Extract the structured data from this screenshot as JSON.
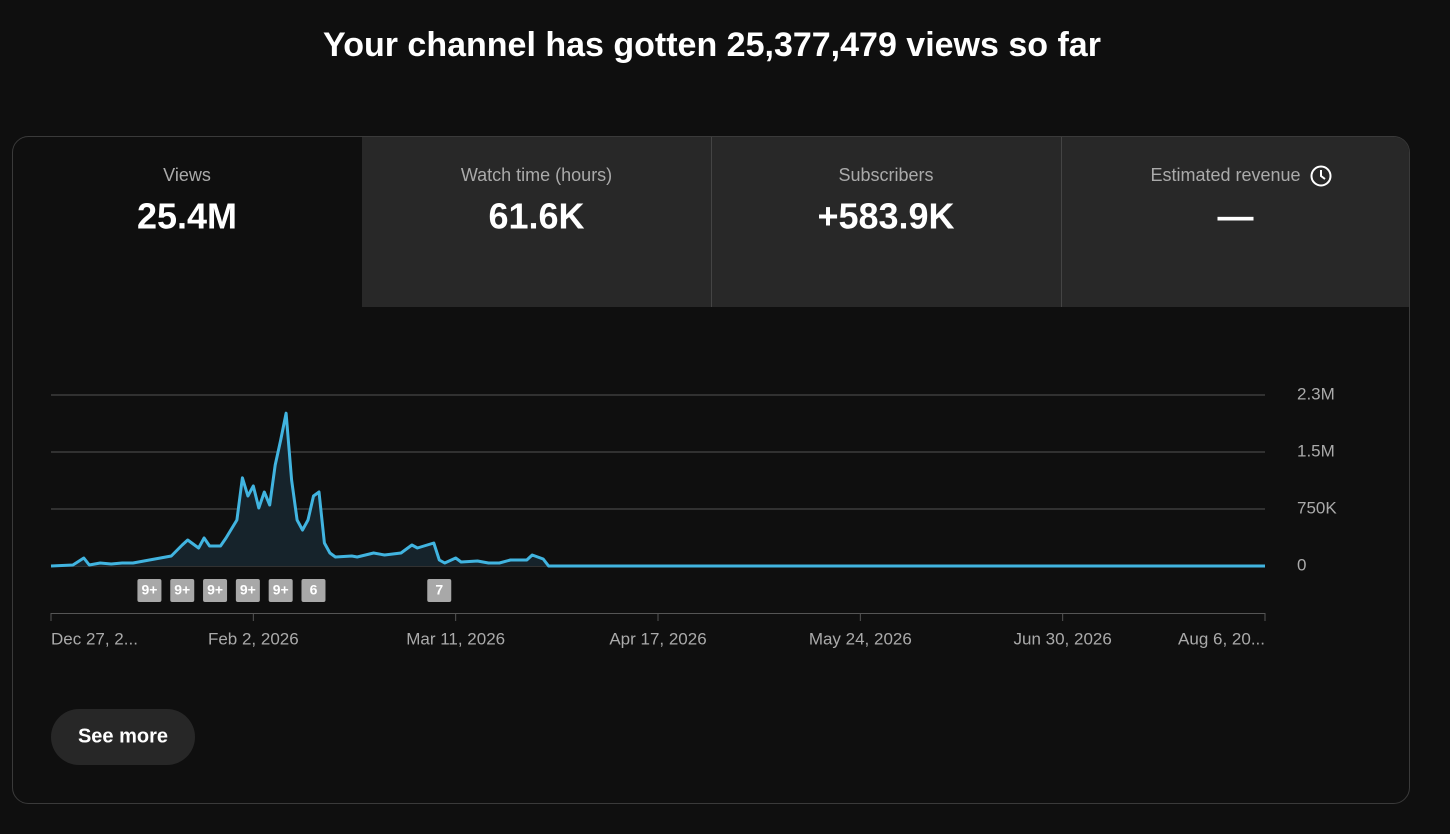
{
  "title": "Your channel has gotten 25,377,479 views so far",
  "tabs": [
    {
      "label": "Views",
      "value": "25.4M"
    },
    {
      "label": "Watch time (hours)",
      "value": "61.6K"
    },
    {
      "label": "Subscribers",
      "value": "+583.9K"
    },
    {
      "label": "Estimated revenue",
      "value": "—"
    }
  ],
  "button": "See more",
  "chart_data": {
    "type": "line",
    "color": "#41b4e0",
    "x": [
      0,
      4,
      6,
      7,
      9,
      11,
      13,
      15,
      18,
      20,
      22,
      24,
      25,
      27,
      28,
      29,
      31,
      32,
      34,
      35,
      36,
      37,
      38,
      39,
      40,
      41,
      42,
      43,
      44,
      45,
      46,
      47,
      48,
      49,
      50,
      51,
      52,
      55,
      56,
      59,
      61,
      64,
      66,
      67,
      70,
      71,
      72,
      74,
      75,
      78,
      80,
      82,
      84,
      87,
      88,
      90,
      91,
      222
    ],
    "values": [
      0,
      13000,
      105000,
      13000,
      40000,
      26000,
      40000,
      40000,
      79000,
      105000,
      132000,
      276000,
      342000,
      237000,
      368000,
      263000,
      263000,
      368000,
      605000,
      1160000,
      921000,
      1053000,
      763000,
      974000,
      803000,
      1329000,
      1658000,
      2010000,
      1132000,
      605000,
      474000,
      605000,
      921000,
      974000,
      303000,
      171000,
      118000,
      132000,
      118000,
      171000,
      145000,
      171000,
      276000,
      237000,
      303000,
      79000,
      40000,
      105000,
      53000,
      66000,
      40000,
      40000,
      79000,
      79000,
      145000,
      92000,
      0,
      0
    ],
    "xlim": [
      0,
      222
    ],
    "xticks": [
      {
        "value": 0,
        "label": "Dec 27, 2..."
      },
      {
        "value": 37,
        "label": "Feb 2, 2026"
      },
      {
        "value": 74,
        "label": "Mar 11, 2026"
      },
      {
        "value": 111,
        "label": "Apr 17, 2026"
      },
      {
        "value": 148,
        "label": "May 24, 2026"
      },
      {
        "value": 185,
        "label": "Jun 30, 2026"
      },
      {
        "value": 222,
        "label": "Aug 6, 20..."
      }
    ],
    "ylim": [
      0,
      2250000
    ],
    "yticks": [
      0,
      {
        "value": 750000,
        "label": "750K"
      },
      {
        "value": 1500000,
        "label": "1.5M"
      },
      {
        "value": 2250000,
        "label": "2.3M"
      }
    ],
    "grid": true,
    "markers": [
      {
        "x": 18,
        "label": "9+"
      },
      {
        "x": 24,
        "label": "9+"
      },
      {
        "x": 30,
        "label": "9+"
      },
      {
        "x": 36,
        "label": "9+"
      },
      {
        "x": 42,
        "label": "9+"
      },
      {
        "x": 48,
        "label": "6"
      },
      {
        "x": 71,
        "label": "7"
      }
    ]
  }
}
